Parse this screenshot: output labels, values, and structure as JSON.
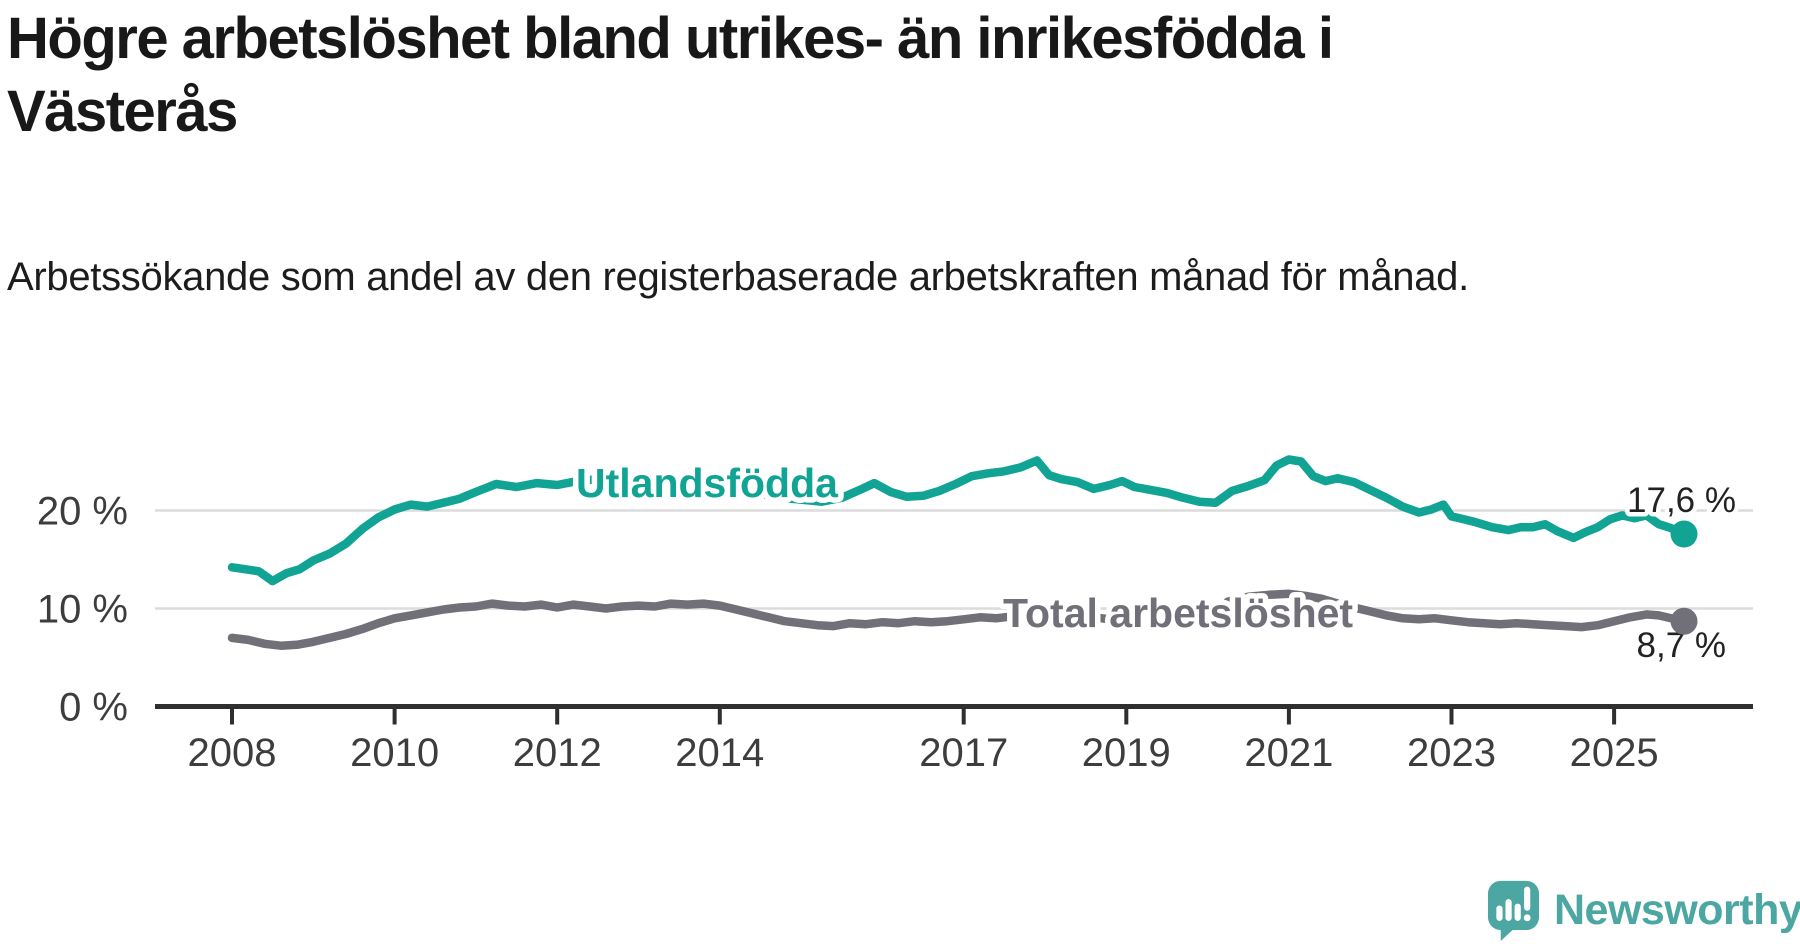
{
  "page": {
    "background": "#ffffff"
  },
  "header": {
    "title": "Högre arbetslöshet bland utrikes- än inrikesfödda i Västerås",
    "subtitle": "Arbetssökande som andel av den registerbaserade arbetskraften månad för månad."
  },
  "chart_data": {
    "type": "line",
    "title": "Högre arbetslöshet bland utrikes- än inrikesfödda i Västerås",
    "subtitle": "Arbetssökande som andel av den registerbaserade arbetskraften månad för månad.",
    "unit": "%",
    "grid": "horizontal",
    "legend_position": "inline-labels",
    "x_range": [
      2008.0,
      2025.86
    ],
    "ylim": [
      0,
      28
    ],
    "x_ticks": [
      2008,
      2010,
      2012,
      2014,
      2017,
      2019,
      2021,
      2023,
      2025
    ],
    "y_ticks": [
      {
        "value": 0,
        "label": "0 %"
      },
      {
        "value": 10,
        "label": "10 %"
      },
      {
        "value": 20,
        "label": "20 %"
      }
    ],
    "colors": {
      "axis": "#2f2f2f",
      "gridline": "#dcdcdc",
      "tick_text": "#3d3d3d",
      "annotation_text": "#222222"
    },
    "series": [
      {
        "name": "Utlandsfödda",
        "color": "#11A394",
        "end_label": "17,6 %",
        "end_value": 17.6,
        "points": [
          [
            2008.0,
            14.2
          ],
          [
            2008.17,
            14.0
          ],
          [
            2008.33,
            13.8
          ],
          [
            2008.5,
            12.8
          ],
          [
            2008.67,
            13.6
          ],
          [
            2008.83,
            14.0
          ],
          [
            2009.0,
            14.9
          ],
          [
            2009.2,
            15.6
          ],
          [
            2009.4,
            16.6
          ],
          [
            2009.6,
            18.1
          ],
          [
            2009.8,
            19.3
          ],
          [
            2010.0,
            20.1
          ],
          [
            2010.2,
            20.6
          ],
          [
            2010.4,
            20.4
          ],
          [
            2010.6,
            20.8
          ],
          [
            2010.8,
            21.2
          ],
          [
            2011.0,
            21.9
          ],
          [
            2011.25,
            22.7
          ],
          [
            2011.5,
            22.4
          ],
          [
            2011.75,
            22.8
          ],
          [
            2012.0,
            22.6
          ],
          [
            2012.25,
            23.0
          ],
          [
            2012.5,
            23.2
          ],
          [
            2012.75,
            23.1
          ],
          [
            2013.0,
            23.3
          ],
          [
            2013.25,
            23.4
          ],
          [
            2013.5,
            23.1
          ],
          [
            2013.75,
            23.0
          ],
          [
            2014.0,
            22.7
          ],
          [
            2014.25,
            22.2
          ],
          [
            2014.5,
            21.7
          ],
          [
            2014.75,
            21.3
          ],
          [
            2015.0,
            21.1
          ],
          [
            2015.25,
            20.9
          ],
          [
            2015.5,
            21.3
          ],
          [
            2015.75,
            22.2
          ],
          [
            2015.9,
            22.8
          ],
          [
            2016.1,
            21.9
          ],
          [
            2016.3,
            21.4
          ],
          [
            2016.5,
            21.5
          ],
          [
            2016.7,
            22.0
          ],
          [
            2016.9,
            22.7
          ],
          [
            2017.1,
            23.5
          ],
          [
            2017.3,
            23.8
          ],
          [
            2017.5,
            24.0
          ],
          [
            2017.7,
            24.4
          ],
          [
            2017.9,
            25.1
          ],
          [
            2018.05,
            23.6
          ],
          [
            2018.2,
            23.2
          ],
          [
            2018.4,
            22.9
          ],
          [
            2018.6,
            22.2
          ],
          [
            2018.8,
            22.6
          ],
          [
            2018.95,
            23.0
          ],
          [
            2019.1,
            22.4
          ],
          [
            2019.3,
            22.1
          ],
          [
            2019.5,
            21.8
          ],
          [
            2019.7,
            21.3
          ],
          [
            2019.9,
            20.9
          ],
          [
            2020.1,
            20.8
          ],
          [
            2020.3,
            22.0
          ],
          [
            2020.5,
            22.5
          ],
          [
            2020.7,
            23.1
          ],
          [
            2020.85,
            24.6
          ],
          [
            2021.0,
            25.2
          ],
          [
            2021.15,
            25.0
          ],
          [
            2021.3,
            23.5
          ],
          [
            2021.45,
            23.0
          ],
          [
            2021.6,
            23.3
          ],
          [
            2021.8,
            22.9
          ],
          [
            2022.0,
            22.1
          ],
          [
            2022.2,
            21.3
          ],
          [
            2022.4,
            20.4
          ],
          [
            2022.6,
            19.8
          ],
          [
            2022.75,
            20.1
          ],
          [
            2022.9,
            20.6
          ],
          [
            2023.0,
            19.4
          ],
          [
            2023.15,
            19.1
          ],
          [
            2023.3,
            18.8
          ],
          [
            2023.5,
            18.3
          ],
          [
            2023.7,
            18.0
          ],
          [
            2023.85,
            18.3
          ],
          [
            2024.0,
            18.3
          ],
          [
            2024.15,
            18.6
          ],
          [
            2024.3,
            17.9
          ],
          [
            2024.5,
            17.2
          ],
          [
            2024.65,
            17.8
          ],
          [
            2024.8,
            18.3
          ],
          [
            2024.95,
            19.1
          ],
          [
            2025.1,
            19.5
          ],
          [
            2025.25,
            19.2
          ],
          [
            2025.4,
            19.5
          ],
          [
            2025.55,
            18.6
          ],
          [
            2025.7,
            18.2
          ],
          [
            2025.86,
            17.6
          ]
        ]
      },
      {
        "name": "Total arbetslöshet",
        "color": "#716F78",
        "end_label": "8,7 %",
        "end_value": 8.7,
        "points": [
          [
            2008.0,
            7.0
          ],
          [
            2008.2,
            6.8
          ],
          [
            2008.4,
            6.4
          ],
          [
            2008.6,
            6.2
          ],
          [
            2008.8,
            6.3
          ],
          [
            2009.0,
            6.6
          ],
          [
            2009.2,
            7.0
          ],
          [
            2009.4,
            7.4
          ],
          [
            2009.6,
            7.9
          ],
          [
            2009.8,
            8.5
          ],
          [
            2010.0,
            9.0
          ],
          [
            2010.2,
            9.3
          ],
          [
            2010.4,
            9.6
          ],
          [
            2010.6,
            9.9
          ],
          [
            2010.8,
            10.1
          ],
          [
            2011.0,
            10.2
          ],
          [
            2011.2,
            10.5
          ],
          [
            2011.4,
            10.3
          ],
          [
            2011.6,
            10.2
          ],
          [
            2011.8,
            10.4
          ],
          [
            2012.0,
            10.1
          ],
          [
            2012.2,
            10.4
          ],
          [
            2012.4,
            10.2
          ],
          [
            2012.6,
            10.0
          ],
          [
            2012.8,
            10.2
          ],
          [
            2013.0,
            10.3
          ],
          [
            2013.2,
            10.2
          ],
          [
            2013.4,
            10.5
          ],
          [
            2013.6,
            10.4
          ],
          [
            2013.8,
            10.5
          ],
          [
            2014.0,
            10.3
          ],
          [
            2014.2,
            9.9
          ],
          [
            2014.4,
            9.5
          ],
          [
            2014.6,
            9.1
          ],
          [
            2014.8,
            8.7
          ],
          [
            2015.0,
            8.5
          ],
          [
            2015.2,
            8.3
          ],
          [
            2015.4,
            8.2
          ],
          [
            2015.6,
            8.5
          ],
          [
            2015.8,
            8.4
          ],
          [
            2016.0,
            8.6
          ],
          [
            2016.2,
            8.5
          ],
          [
            2016.4,
            8.7
          ],
          [
            2016.6,
            8.6
          ],
          [
            2016.8,
            8.7
          ],
          [
            2017.0,
            8.9
          ],
          [
            2017.2,
            9.1
          ],
          [
            2017.4,
            9.0
          ],
          [
            2017.6,
            9.2
          ],
          [
            2017.8,
            9.1
          ],
          [
            2018.0,
            9.3
          ],
          [
            2018.2,
            9.2
          ],
          [
            2018.4,
            9.0
          ],
          [
            2018.6,
            9.1
          ],
          [
            2018.8,
            8.9
          ],
          [
            2019.0,
            9.0
          ],
          [
            2019.2,
            8.9
          ],
          [
            2019.4,
            8.8
          ],
          [
            2019.6,
            8.7
          ],
          [
            2019.8,
            8.8
          ],
          [
            2020.0,
            9.0
          ],
          [
            2020.25,
            10.7
          ],
          [
            2020.5,
            11.2
          ],
          [
            2020.75,
            11.4
          ],
          [
            2021.0,
            11.5
          ],
          [
            2021.2,
            11.3
          ],
          [
            2021.4,
            11.0
          ],
          [
            2021.6,
            10.5
          ],
          [
            2021.8,
            10.1
          ],
          [
            2022.0,
            9.7
          ],
          [
            2022.2,
            9.3
          ],
          [
            2022.4,
            9.0
          ],
          [
            2022.6,
            8.9
          ],
          [
            2022.8,
            9.0
          ],
          [
            2023.0,
            8.8
          ],
          [
            2023.2,
            8.6
          ],
          [
            2023.4,
            8.5
          ],
          [
            2023.6,
            8.4
          ],
          [
            2023.8,
            8.5
          ],
          [
            2024.0,
            8.4
          ],
          [
            2024.2,
            8.3
          ],
          [
            2024.4,
            8.2
          ],
          [
            2024.6,
            8.1
          ],
          [
            2024.8,
            8.3
          ],
          [
            2025.0,
            8.7
          ],
          [
            2025.2,
            9.1
          ],
          [
            2025.4,
            9.4
          ],
          [
            2025.55,
            9.3
          ],
          [
            2025.7,
            9.0
          ],
          [
            2025.86,
            8.7
          ]
        ]
      }
    ]
  },
  "branding": {
    "logo_text": "Newsworthy",
    "logo_color": "#4CA7A2",
    "logo_icon": "speech-bubble-bar-chart-icon"
  }
}
